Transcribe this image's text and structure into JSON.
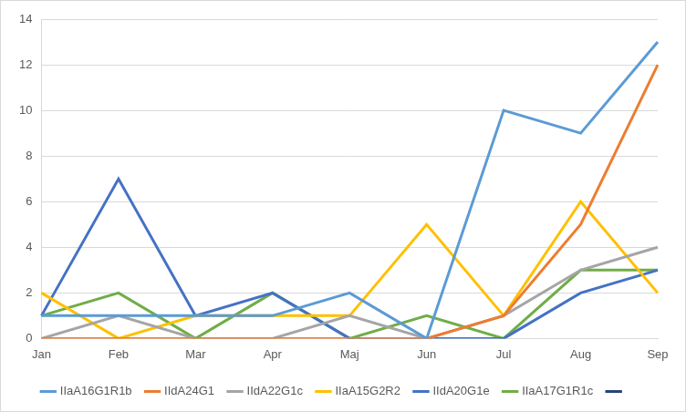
{
  "chart_data": {
    "type": "line",
    "categories": [
      "Jan",
      "Feb",
      "Mar",
      "Apr",
      "Maj",
      "Jun",
      "Jul",
      "Aug",
      "Sep"
    ],
    "series": [
      {
        "name": "IIaA16G1R1b",
        "color": "#5b9bd5",
        "values": [
          1,
          1,
          1,
          1,
          2,
          0,
          10,
          9,
          13
        ]
      },
      {
        "name": "IIdA24G1",
        "color": "#ed7d31",
        "values": [
          0,
          0,
          0,
          0,
          0,
          0,
          1,
          5,
          12
        ]
      },
      {
        "name": "IIdA22G1c",
        "color": "#a5a5a5",
        "values": [
          0,
          1,
          0,
          0,
          1,
          0,
          1,
          3,
          4
        ]
      },
      {
        "name": "IIaA15G2R2",
        "color": "#ffc000",
        "values": [
          2,
          0,
          1,
          1,
          1,
          5,
          1,
          6,
          2
        ]
      },
      {
        "name": "IIdA20G1e",
        "color": "#4472c4",
        "values": [
          1,
          7,
          1,
          2,
          0,
          0,
          0,
          2,
          3
        ]
      },
      {
        "name": "IIaA17G1R1c",
        "color": "#70ad47",
        "values": [
          1,
          2,
          0,
          2,
          0,
          1,
          0,
          3,
          3
        ]
      },
      {
        "name": null,
        "color": "#264478",
        "values": [
          null,
          null,
          null,
          null,
          null,
          null,
          null,
          null,
          null
        ]
      }
    ],
    "ylim": [
      0,
      14
    ],
    "yticks": [
      0,
      2,
      4,
      6,
      8,
      10,
      12,
      14
    ],
    "grid": true,
    "legend": "bottom"
  }
}
